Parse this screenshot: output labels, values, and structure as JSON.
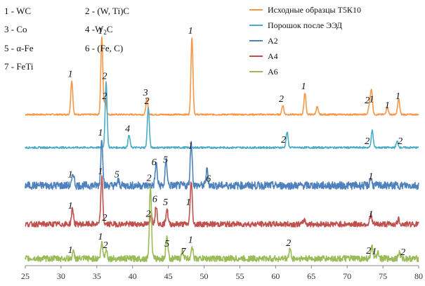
{
  "chart_data": {
    "type": "line",
    "xlim": [
      25,
      80
    ],
    "x_ticks": [
      25,
      30,
      35,
      40,
      45,
      50,
      55,
      60,
      65,
      70,
      75,
      80
    ],
    "grid": false,
    "legend_placement": "top-right",
    "phase_key": [
      {
        "label": "1 - WC"
      },
      {
        "label": "2 - (W, Ti)C"
      },
      {
        "label": "3 - Co"
      },
      {
        "label": "4 -W",
        "sub": "2",
        "suffix": "C"
      },
      {
        "label": "5 - α-Fe"
      },
      {
        "label": "6 - (Fe, C)"
      },
      {
        "label": "7 - FeTi"
      }
    ],
    "series": [
      {
        "name": "Исходные образцы Т5К10",
        "color": "#F79646",
        "noise": 0.5,
        "peaks": [
          [
            31.5,
            22
          ],
          [
            35.7,
            50
          ],
          [
            36.2,
            10
          ],
          [
            42.0,
            10
          ],
          [
            48.3,
            50
          ],
          [
            61.0,
            6
          ],
          [
            64.1,
            14
          ],
          [
            65.8,
            5
          ],
          [
            73.1,
            6
          ],
          [
            73.4,
            16
          ],
          [
            75.6,
            5
          ],
          [
            77.2,
            10
          ]
        ],
        "labels": [
          [
            "1",
            31.5
          ],
          [
            "1",
            35.7
          ],
          [
            "2",
            36.3
          ],
          [
            "3",
            42.0
          ],
          [
            "1",
            48.3
          ],
          [
            "2",
            61.0
          ],
          [
            "1",
            64.1
          ],
          [
            "2",
            73.0
          ],
          [
            "1",
            73.6
          ],
          [
            "1",
            75.8
          ],
          [
            "1",
            77.3
          ]
        ]
      },
      {
        "name": "Порошок после ЭЭД",
        "color": "#4BACC6",
        "noise": 0.6,
        "peaks": [
          [
            36.3,
            42
          ],
          [
            39.5,
            8
          ],
          [
            42.2,
            26
          ],
          [
            61.6,
            10
          ],
          [
            73.5,
            11
          ],
          [
            77.0,
            4
          ]
        ],
        "labels": [
          [
            "2",
            36.3
          ],
          [
            "4",
            39.5
          ],
          [
            "2",
            42.2
          ],
          [
            "2",
            61.3
          ],
          [
            "2",
            73.0
          ],
          [
            "2",
            77.6
          ]
        ]
      },
      {
        "name": "А2",
        "color": "#4F81BD",
        "noise": 2.5,
        "peaks": [
          [
            31.7,
            8
          ],
          [
            35.7,
            30
          ],
          [
            38.0,
            3
          ],
          [
            43.3,
            14
          ],
          [
            44.7,
            16
          ],
          [
            48.2,
            28
          ],
          [
            50.4,
            10
          ],
          [
            73.3,
            5
          ]
        ],
        "labels": [
          [
            "1",
            31.5
          ],
          [
            "1",
            35.7
          ],
          [
            "5",
            38.0
          ],
          [
            "6",
            43.2
          ],
          [
            "5",
            44.8
          ],
          [
            "1",
            48.3
          ],
          [
            "6",
            50.8
          ],
          [
            "1",
            73.5
          ]
        ]
      },
      {
        "name": "А4",
        "color": "#C0504D",
        "noise": 1.8,
        "peaks": [
          [
            31.6,
            10
          ],
          [
            35.7,
            30
          ],
          [
            42.6,
            7
          ],
          [
            43.3,
            12
          ],
          [
            44.8,
            10
          ],
          [
            48.2,
            28
          ],
          [
            64.0,
            3
          ],
          [
            73.3,
            6
          ],
          [
            77.2,
            3
          ]
        ],
        "labels": [
          [
            "1",
            31.5
          ],
          [
            "1",
            35.7
          ],
          [
            "2",
            36.3
          ],
          [
            "2",
            42.4
          ],
          [
            "6",
            43.3
          ],
          [
            "5",
            44.8
          ],
          [
            "1",
            48.0
          ],
          [
            "1",
            73.5
          ]
        ]
      },
      {
        "name": "А6",
        "color": "#9BBB59",
        "noise": 2.0,
        "peaks": [
          [
            31.7,
            4
          ],
          [
            35.7,
            10
          ],
          [
            36.3,
            6
          ],
          [
            42.5,
            48
          ],
          [
            44.8,
            15
          ],
          [
            47.0,
            5
          ],
          [
            48.3,
            8
          ],
          [
            62.0,
            6
          ],
          [
            73.5,
            8
          ],
          [
            74.3,
            5
          ],
          [
            77.3,
            4
          ]
        ],
        "labels": [
          [
            "1",
            31.5
          ],
          [
            "1",
            35.7
          ],
          [
            "2",
            36.4
          ],
          [
            "2",
            42.5
          ],
          [
            "5",
            45.0
          ],
          [
            "7",
            47.3
          ],
          [
            "1",
            48.3
          ],
          [
            "2",
            62.0
          ],
          [
            "2",
            73.2
          ],
          [
            "1",
            74.0
          ],
          [
            "2",
            78.0
          ]
        ]
      }
    ]
  }
}
